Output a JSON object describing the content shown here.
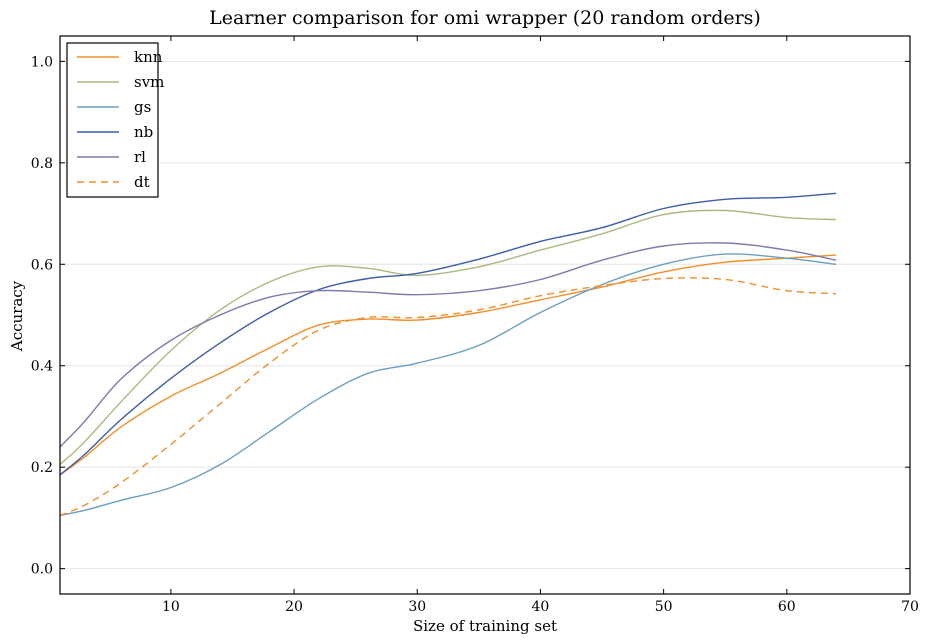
{
  "chart_data": {
    "type": "line",
    "title": "Learner comparison for omi wrapper (20 random orders)",
    "xlabel": "Size of training set",
    "ylabel": "Accuracy",
    "xlim": [
      1,
      70
    ],
    "ylim": [
      -0.05,
      1.05
    ],
    "xticks": [
      10,
      20,
      30,
      40,
      50,
      60,
      70
    ],
    "yticks": [
      0.0,
      0.2,
      0.4,
      0.6,
      0.8,
      1.0
    ],
    "xtick_labels": [
      "10",
      "20",
      "30",
      "40",
      "50",
      "60",
      "70"
    ],
    "ytick_labels": [
      "0.0",
      "0.2",
      "0.4",
      "0.6",
      "0.8",
      "1.0"
    ],
    "grid": "horizontal",
    "legend_position": "top-left",
    "x": [
      1,
      3,
      6,
      10,
      14,
      18,
      22,
      26,
      30,
      35,
      40,
      45,
      50,
      55,
      60,
      64
    ],
    "series": [
      {
        "name": "knn",
        "color": "#f28e2b",
        "dash": "solid",
        "values": [
          0.185,
          0.22,
          0.28,
          0.34,
          0.385,
          0.435,
          0.48,
          0.492,
          0.49,
          0.505,
          0.53,
          0.555,
          0.585,
          0.604,
          0.612,
          0.618
        ]
      },
      {
        "name": "svm",
        "color": "#a8bb7e",
        "dash": "solid",
        "values": [
          0.205,
          0.25,
          0.33,
          0.43,
          0.51,
          0.565,
          0.595,
          0.592,
          0.578,
          0.595,
          0.628,
          0.66,
          0.698,
          0.706,
          0.692,
          0.688
        ]
      },
      {
        "name": "gs",
        "color": "#6a9fc4",
        "dash": "solid",
        "values": [
          0.105,
          0.115,
          0.135,
          0.16,
          0.205,
          0.27,
          0.335,
          0.385,
          0.405,
          0.44,
          0.505,
          0.56,
          0.6,
          0.62,
          0.612,
          0.6
        ]
      },
      {
        "name": "nb",
        "color": "#3e5ca8",
        "dash": "solid",
        "values": [
          0.185,
          0.225,
          0.295,
          0.375,
          0.445,
          0.505,
          0.55,
          0.572,
          0.582,
          0.61,
          0.645,
          0.672,
          0.71,
          0.728,
          0.732,
          0.74
        ]
      },
      {
        "name": "rl",
        "color": "#7f7aad",
        "dash": "solid",
        "values": [
          0.24,
          0.29,
          0.375,
          0.45,
          0.5,
          0.535,
          0.548,
          0.545,
          0.54,
          0.548,
          0.57,
          0.608,
          0.636,
          0.642,
          0.628,
          0.608
        ]
      },
      {
        "name": "dt",
        "color": "#f28e2b",
        "dash": "dashed",
        "values": [
          0.105,
          0.125,
          0.17,
          0.245,
          0.325,
          0.405,
          0.47,
          0.495,
          0.495,
          0.51,
          0.538,
          0.558,
          0.572,
          0.57,
          0.548,
          0.542
        ]
      }
    ]
  }
}
